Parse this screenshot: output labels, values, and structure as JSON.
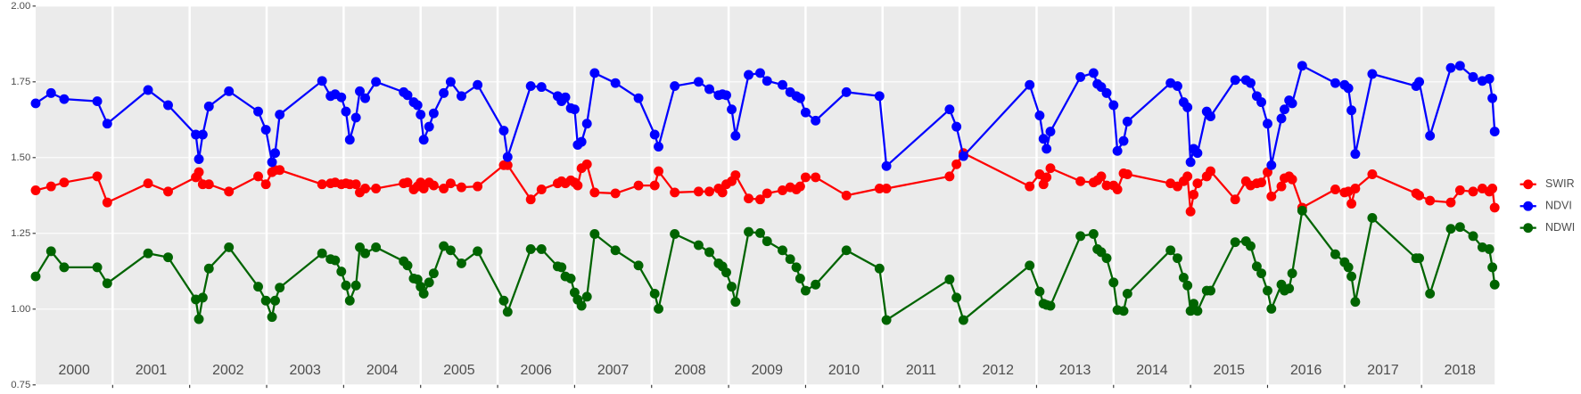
{
  "chart_data": {
    "type": "line",
    "x": [
      2000.0,
      2000.2,
      2000.37,
      2000.8,
      2000.93,
      2001.46,
      2001.72,
      2002.08,
      2002.12,
      2002.17,
      2002.25,
      2002.51,
      2002.89,
      2002.99,
      2003.07,
      2003.11,
      2003.17,
      2003.72,
      2003.83,
      2003.89,
      2003.97,
      2004.03,
      2004.08,
      2004.16,
      2004.21,
      2004.28,
      2004.42,
      2004.78,
      2004.83,
      2004.91,
      2004.96,
      2005.0,
      2005.04,
      2005.11,
      2005.17,
      2005.3,
      2005.39,
      2005.53,
      2005.74,
      2006.08,
      2006.13,
      2006.43,
      2006.57,
      2006.78,
      2006.83,
      2006.88,
      2006.95,
      2007.0,
      2007.04,
      2007.09,
      2007.16,
      2007.26,
      2007.53,
      2007.83,
      2008.04,
      2008.09,
      2008.3,
      2008.61,
      2008.75,
      2008.87,
      2008.92,
      2008.97,
      2009.04,
      2009.09,
      2009.26,
      2009.41,
      2009.5,
      2009.7,
      2009.8,
      2009.88,
      2009.93,
      2010.0,
      2010.13,
      2010.53,
      2010.96,
      2011.05,
      2011.87,
      2011.96,
      2012.05,
      2012.91,
      2013.04,
      2013.09,
      2013.13,
      2013.18,
      2013.57,
      2013.74,
      2013.79,
      2013.84,
      2013.91,
      2014.0,
      2014.05,
      2014.13,
      2014.18,
      2014.74,
      2014.83,
      2014.91,
      2014.96,
      2015.0,
      2015.04,
      2015.09,
      2015.21,
      2015.26,
      2015.58,
      2015.72,
      2015.78,
      2015.86,
      2015.92,
      2016.0,
      2016.05,
      2016.18,
      2016.22,
      2016.28,
      2016.32,
      2016.45,
      2016.88,
      2017.0,
      2017.05,
      2017.09,
      2017.14,
      2017.36,
      2017.93,
      2017.97,
      2018.11,
      2018.38,
      2018.5,
      2018.67,
      2018.79,
      2018.88,
      2018.92,
      2018.95
    ],
    "series": [
      {
        "name": "SWIR",
        "color": "#ff0000",
        "values": [
          1.392,
          1.405,
          1.418,
          1.438,
          1.352,
          1.415,
          1.388,
          1.435,
          1.452,
          1.412,
          1.412,
          1.388,
          1.438,
          1.412,
          1.452,
          1.459,
          1.459,
          1.412,
          1.415,
          1.418,
          1.412,
          1.415,
          1.412,
          1.412,
          1.385,
          1.398,
          1.398,
          1.415,
          1.418,
          1.395,
          1.405,
          1.418,
          1.398,
          1.418,
          1.408,
          1.398,
          1.415,
          1.402,
          1.405,
          1.475,
          1.475,
          1.362,
          1.395,
          1.415,
          1.422,
          1.415,
          1.425,
          1.418,
          1.408,
          1.465,
          1.478,
          1.385,
          1.382,
          1.408,
          1.408,
          1.455,
          1.385,
          1.388,
          1.388,
          1.398,
          1.385,
          1.412,
          1.422,
          1.442,
          1.365,
          1.362,
          1.382,
          1.392,
          1.402,
          1.395,
          1.405,
          1.435,
          1.435,
          1.375,
          1.398,
          1.398,
          1.438,
          1.478,
          1.515,
          1.405,
          1.445,
          1.412,
          1.435,
          1.465,
          1.422,
          1.418,
          1.425,
          1.438,
          1.408,
          1.408,
          1.395,
          1.448,
          1.445,
          1.415,
          1.405,
          1.422,
          1.438,
          1.322,
          1.378,
          1.415,
          1.438,
          1.455,
          1.362,
          1.422,
          1.408,
          1.415,
          1.418,
          1.452,
          1.372,
          1.405,
          1.432,
          1.438,
          1.428,
          1.335,
          1.395,
          1.385,
          1.388,
          1.348,
          1.398,
          1.445,
          1.382,
          1.375,
          1.358,
          1.352,
          1.392,
          1.388,
          1.398,
          1.388,
          1.398,
          1.335
        ]
      },
      {
        "name": "NDVI",
        "color": "#0000ff",
        "values": [
          1.679,
          1.713,
          1.693,
          1.686,
          1.612,
          1.723,
          1.673,
          1.576,
          1.495,
          1.576,
          1.669,
          1.719,
          1.652,
          1.592,
          1.485,
          1.515,
          1.642,
          1.753,
          1.703,
          1.709,
          1.699,
          1.652,
          1.559,
          1.632,
          1.719,
          1.696,
          1.75,
          1.716,
          1.706,
          1.683,
          1.673,
          1.642,
          1.559,
          1.602,
          1.646,
          1.713,
          1.75,
          1.703,
          1.74,
          1.589,
          1.502,
          1.736,
          1.733,
          1.703,
          1.686,
          1.699,
          1.663,
          1.659,
          1.542,
          1.552,
          1.612,
          1.779,
          1.746,
          1.696,
          1.576,
          1.536,
          1.736,
          1.75,
          1.726,
          1.706,
          1.709,
          1.706,
          1.659,
          1.572,
          1.773,
          1.779,
          1.753,
          1.74,
          1.716,
          1.703,
          1.696,
          1.649,
          1.622,
          1.716,
          1.703,
          1.472,
          1.659,
          1.602,
          1.505,
          1.74,
          1.639,
          1.562,
          1.529,
          1.586,
          1.766,
          1.779,
          1.743,
          1.733,
          1.713,
          1.673,
          1.522,
          1.555,
          1.619,
          1.746,
          1.736,
          1.683,
          1.666,
          1.485,
          1.529,
          1.515,
          1.652,
          1.636,
          1.756,
          1.756,
          1.746,
          1.703,
          1.683,
          1.612,
          1.475,
          1.629,
          1.659,
          1.689,
          1.679,
          1.803,
          1.746,
          1.74,
          1.729,
          1.656,
          1.512,
          1.776,
          1.736,
          1.75,
          1.572,
          1.796,
          1.803,
          1.766,
          1.753,
          1.76,
          1.696,
          1.586
        ]
      },
      {
        "name": "NDWI",
        "color": "#006400",
        "values": [
          1.108,
          1.191,
          1.138,
          1.138,
          1.085,
          1.184,
          1.171,
          1.032,
          0.967,
          1.038,
          1.134,
          1.204,
          1.074,
          1.028,
          0.974,
          1.028,
          1.071,
          1.184,
          1.165,
          1.161,
          1.124,
          1.078,
          1.028,
          1.078,
          1.204,
          1.184,
          1.204,
          1.158,
          1.144,
          1.101,
          1.098,
          1.074,
          1.051,
          1.088,
          1.118,
          1.208,
          1.194,
          1.151,
          1.191,
          1.028,
          0.991,
          1.198,
          1.198,
          1.141,
          1.138,
          1.108,
          1.101,
          1.055,
          1.031,
          1.011,
          1.041,
          1.248,
          1.194,
          1.144,
          1.051,
          1.001,
          1.248,
          1.211,
          1.188,
          1.151,
          1.141,
          1.121,
          1.074,
          1.024,
          1.255,
          1.251,
          1.224,
          1.194,
          1.165,
          1.138,
          1.101,
          1.061,
          1.081,
          1.194,
          1.134,
          0.964,
          1.098,
          1.038,
          0.964,
          1.144,
          1.058,
          1.018,
          1.014,
          1.011,
          1.241,
          1.248,
          1.198,
          1.188,
          1.168,
          1.088,
          0.997,
          0.994,
          1.051,
          1.194,
          1.168,
          1.104,
          1.078,
          0.994,
          1.018,
          0.994,
          1.061,
          1.061,
          1.221,
          1.224,
          1.208,
          1.141,
          1.118,
          1.061,
          1.001,
          1.081,
          1.061,
          1.068,
          1.118,
          1.325,
          1.181,
          1.155,
          1.138,
          1.108,
          1.024,
          1.301,
          1.168,
          1.168,
          1.051,
          1.265,
          1.271,
          1.241,
          1.204,
          1.198,
          1.138,
          1.081
        ]
      }
    ],
    "xlim": [
      2000,
      2018.95
    ],
    "xticks": [
      {
        "value": 2000.5,
        "label": "2000"
      },
      {
        "value": 2001.5,
        "label": "2001"
      },
      {
        "value": 2002.5,
        "label": "2002"
      },
      {
        "value": 2003.5,
        "label": "2003"
      },
      {
        "value": 2004.5,
        "label": "2004"
      },
      {
        "value": 2005.5,
        "label": "2005"
      },
      {
        "value": 2006.5,
        "label": "2006"
      },
      {
        "value": 2007.5,
        "label": "2007"
      },
      {
        "value": 2008.5,
        "label": "2008"
      },
      {
        "value": 2009.5,
        "label": "2009"
      },
      {
        "value": 2010.5,
        "label": "2010"
      },
      {
        "value": 2011.5,
        "label": "2011"
      },
      {
        "value": 2012.5,
        "label": "2012"
      },
      {
        "value": 2013.5,
        "label": "2013"
      },
      {
        "value": 2014.5,
        "label": "2014"
      },
      {
        "value": 2015.5,
        "label": "2015"
      },
      {
        "value": 2016.5,
        "label": "2016"
      },
      {
        "value": 2017.5,
        "label": "2017"
      },
      {
        "value": 2018.5,
        "label": "2018"
      }
    ],
    "year_lines": [
      2001,
      2002,
      2003,
      2004,
      2005,
      2006,
      2007,
      2008,
      2009,
      2010,
      2011,
      2012,
      2013,
      2014,
      2015,
      2016,
      2017,
      2018
    ],
    "ylim": [
      0.75,
      2.0
    ],
    "yticks": [
      {
        "value": 0.75,
        "label": "0.75"
      },
      {
        "value": 1,
        "label": "1.00"
      },
      1.25,
      {
        "value": 1.5,
        "label": "1.50"
      },
      1.75,
      {
        "value": 2,
        "label": "2.00"
      }
    ],
    "grid": true,
    "legend": "right"
  }
}
